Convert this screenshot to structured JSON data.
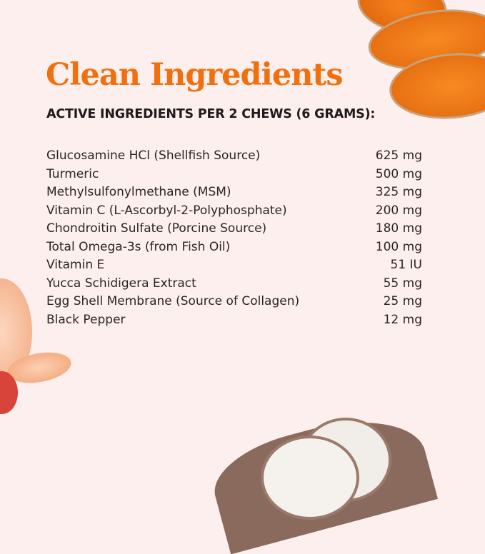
{
  "title": "Clean Ingredients",
  "subtitle": "ACTIVE INGREDIENTS PER 2 CHEWS (6 GRAMS):",
  "ingredients": [
    {
      "name": "Glucosamine HCl (Shellfish Source)",
      "amount": "625 mg"
    },
    {
      "name": "Turmeric",
      "amount": "500 mg"
    },
    {
      "name": "Methylsulfonylmethane (MSM)",
      "amount": "325 mg"
    },
    {
      "name": "Vitamin C (L-Ascorbyl-2-Polyphosphate)",
      "amount": "200 mg"
    },
    {
      "name": "Chondroitin Sulfate (Porcine Source)",
      "amount": "180 mg"
    },
    {
      "name": "Total Omega-3s (from Fish Oil)",
      "amount": "100 mg"
    },
    {
      "name": "Vitamin E",
      "amount": "51 IU"
    },
    {
      "name": "Yucca Schidigera Extract",
      "amount": "55 mg"
    },
    {
      "name": "Egg Shell Membrane (Source of Collagen)",
      "amount": "25 mg"
    },
    {
      "name": "Black Pepper",
      "amount": "12 mg"
    }
  ],
  "colors": {
    "accent": "#f26f0f",
    "background": "#fcefed",
    "text": "#2a2626"
  }
}
